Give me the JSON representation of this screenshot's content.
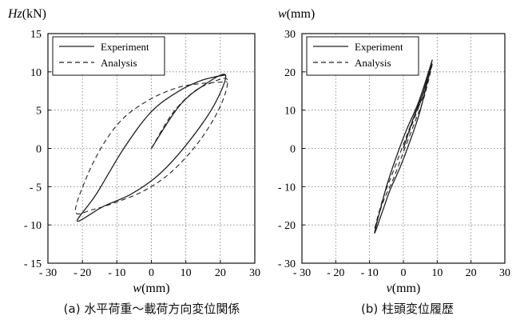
{
  "chart_data": [
    {
      "type": "line",
      "ylabel_italic": "Hz",
      "ylabel_unit": "(kN)",
      "xlabel_italic": "w",
      "xlabel_unit": "(mm)",
      "xlim": [
        -30,
        30
      ],
      "ylim": [
        -15,
        15
      ],
      "xticks": [
        -30,
        -20,
        -10,
        0,
        10,
        20,
        30
      ],
      "yticks": [
        -15,
        -10,
        -5,
        0,
        5,
        10,
        15
      ],
      "xtick_labels": [
        "- 30",
        "- 20",
        "- 10",
        "0",
        "10",
        "20",
        "30"
      ],
      "ytick_labels": [
        "- 15",
        "- 10",
        "- 5",
        "0",
        "5",
        "10",
        "15"
      ],
      "grid": true,
      "legend_position": "top-left",
      "caption": "(a) 水平荷重〜載荷方向変位関係",
      "series": [
        {
          "name": "Experiment",
          "style": "solid",
          "x": [
            0,
            8,
            15,
            21.5,
            18,
            10,
            2,
            -6,
            -14,
            -21.5,
            -16,
            -8,
            0,
            8,
            14,
            18,
            21.5
          ],
          "y": [
            0,
            5.5,
            8.2,
            9.6,
            5.5,
            0.4,
            -3.5,
            -6,
            -7.6,
            -9.5,
            -6,
            0,
            4.8,
            7.5,
            8.8,
            9.3,
            9.6
          ]
        },
        {
          "name": "Analysis",
          "style": "dashed",
          "x": [
            0,
            6,
            12,
            17,
            22,
            20,
            14,
            6,
            -2,
            -10,
            -17,
            -22,
            -19,
            -14,
            -8,
            0,
            8,
            15,
            22
          ],
          "y": [
            0,
            4.5,
            7.3,
            8.5,
            9,
            5.5,
            1,
            -3,
            -5.5,
            -7,
            -8,
            -8.3,
            -4,
            0.5,
            4,
            6.5,
            8,
            8.5,
            8.7
          ]
        }
      ]
    },
    {
      "type": "line",
      "ylabel_italic": "w",
      "ylabel_unit": "(mm)",
      "xlabel_italic": "v",
      "xlabel_unit": "(mm)",
      "xlim": [
        -30,
        30
      ],
      "ylim": [
        -30,
        30
      ],
      "xticks": [
        -30,
        -20,
        -10,
        0,
        10,
        20,
        30
      ],
      "yticks": [
        -30,
        -20,
        -10,
        0,
        10,
        20,
        30
      ],
      "xtick_labels": [
        "- 30",
        "- 20",
        "- 10",
        "0",
        "10",
        "20",
        "30"
      ],
      "ytick_labels": [
        "- 30",
        "- 20",
        "- 10",
        "0",
        "10",
        "20",
        "30"
      ],
      "grid": true,
      "legend_position": "top-left",
      "caption": "(b) 柱頭変位履歴",
      "series": [
        {
          "name": "Experiment",
          "style": "solid",
          "x": [
            0,
            3,
            6,
            8.5,
            5,
            2,
            -1,
            -4,
            -6,
            -8.5,
            -5,
            -2,
            1,
            4,
            6,
            8.5
          ],
          "y": [
            0,
            8,
            15,
            23,
            10,
            2,
            -5,
            -11,
            -16,
            -22,
            -10,
            -2,
            5,
            11,
            16,
            23
          ]
        },
        {
          "name": "Analysis",
          "style": "dashed",
          "x": [
            0,
            2,
            5,
            8.5,
            6,
            3,
            0,
            -3,
            -6,
            -8.5,
            -6,
            -3,
            0,
            3,
            6,
            8.5
          ],
          "y": [
            0,
            5,
            12,
            22,
            13,
            6,
            -1,
            -8,
            -14,
            -21,
            -13,
            -6,
            1,
            8,
            14,
            22
          ]
        }
      ]
    }
  ]
}
